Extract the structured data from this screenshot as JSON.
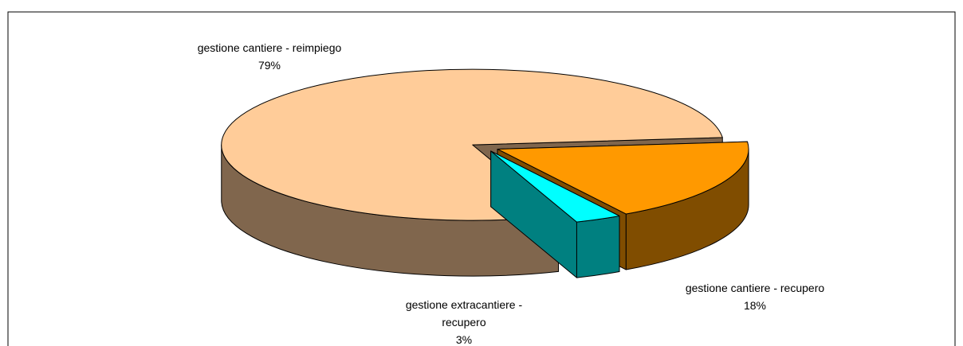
{
  "chart_data": {
    "type": "pie3d",
    "categories": [
      "gestione cantiere - reimpiego",
      "gestione cantiere - recupero",
      "gestione extracantiere - recupero"
    ],
    "values": [
      79,
      18,
      3
    ],
    "value_labels": [
      "79%",
      "18%",
      "3%"
    ],
    "colors": [
      "#ffcc99",
      "#ff9900",
      "#00ffff"
    ]
  }
}
